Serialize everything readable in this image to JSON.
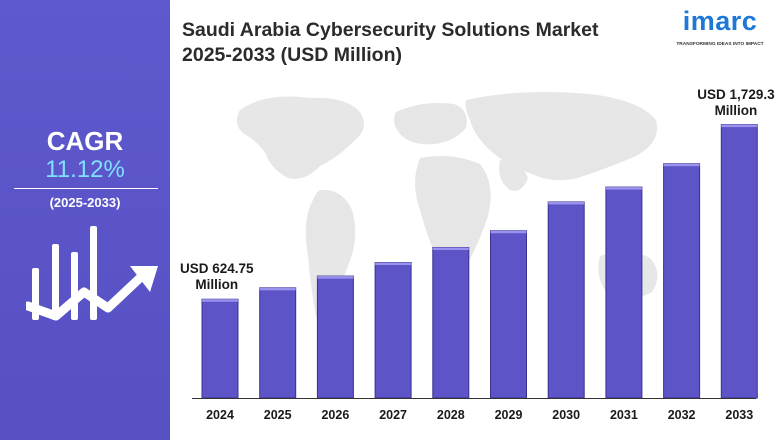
{
  "title": "Saudi Arabia Cybersecurity Solutions Market 2025-2033 (USD Million)",
  "logo": {
    "name": "imarc",
    "tagline": "TRANSFORMING IDEAS INTO IMPACT"
  },
  "cagr": {
    "label": "CAGR",
    "value": "11.12%",
    "period": "(2025-2033)"
  },
  "colors": {
    "panel": "#5b55c9",
    "bar_fill": "#5d54c8",
    "bar_edge": "#3a3190",
    "accent_value": "#7fe0ff",
    "logo_blue": "#1e78d8"
  },
  "icons": [
    "growth-bars-icon",
    "trend-arrow-icon",
    "world-map-icon"
  ],
  "chart_data": {
    "type": "bar",
    "title": "Saudi Arabia Cybersecurity Solutions Market 2025-2033 (USD Million)",
    "categories": [
      "2024",
      "2025",
      "2026",
      "2027",
      "2028",
      "2029",
      "2030",
      "2031",
      "2032",
      "2033"
    ],
    "values": [
      624.75,
      697,
      771,
      857,
      952,
      1058,
      1240,
      1334,
      1482,
      1729.3
    ],
    "callouts": [
      {
        "category": "2024",
        "line1": "USD 624.75",
        "line2": "Million"
      },
      {
        "category": "2033",
        "line1": "USD 1,729.3",
        "line2": "Million"
      }
    ],
    "xlabel": "",
    "ylabel": "",
    "ylim": [
      0,
      1790
    ],
    "grid": false,
    "legend": "none"
  }
}
